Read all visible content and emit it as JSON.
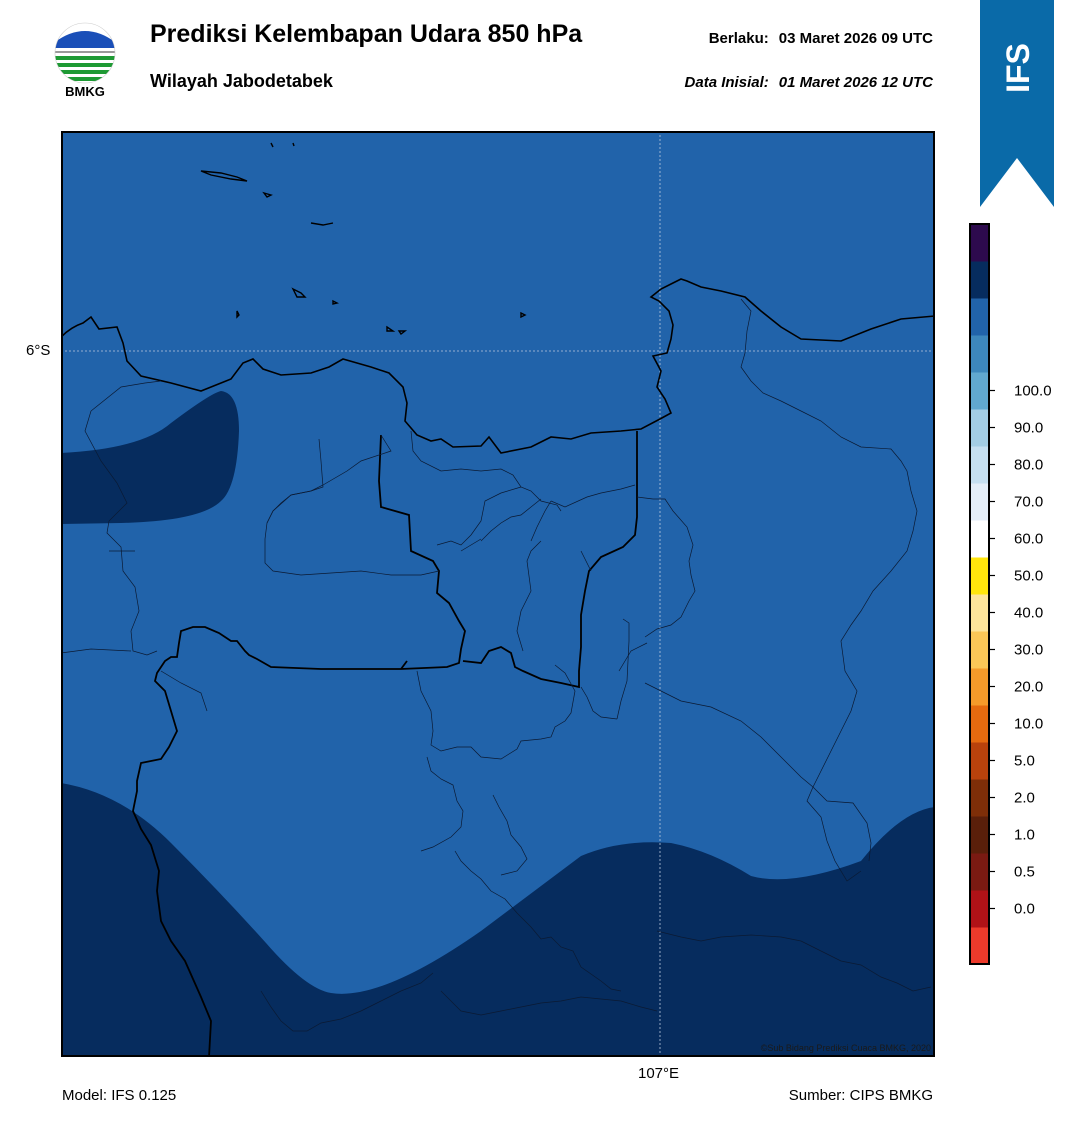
{
  "header": {
    "title": "Prediksi Kelembapan Udara 850 hPa",
    "subtitle": "Wilayah Jabodetabek",
    "valid_label": "Berlaku:",
    "valid_value": "03 Maret 2026 09 UTC",
    "init_label": "Data Inisial:",
    "init_value": "01 Maret 2026 12 UTC"
  },
  "logo": {
    "text": "BMKG",
    "icon": "bmkg-logo-icon"
  },
  "ribbon": {
    "text": "IFS",
    "color": "#0a6aa8"
  },
  "map": {
    "lat_label": "6°S",
    "lon_label": "107°E",
    "credit": "©Sub Bidang Prediksi Cuaca BMKG, 2020",
    "base_fill_color": "#2163aa",
    "high_fill_color": "#062c5e"
  },
  "colorbar": {
    "colors": [
      "#ec3a2b",
      "#b01217",
      "#7a1a12",
      "#5a1f0a",
      "#7e2e08",
      "#b9420c",
      "#e56a0f",
      "#f59a2a",
      "#fbc757",
      "#fde49a",
      "#ffe50c",
      "#ffffff",
      "#e4eef8",
      "#c5dff0",
      "#a3cde4",
      "#61a8cf",
      "#3d87bc",
      "#2163aa",
      "#062c5e",
      "#2d0a4d"
    ],
    "labels": [
      "0.0",
      "0.5",
      "1.0",
      "2.0",
      "5.0",
      "10.0",
      "20.0",
      "30.0",
      "40.0",
      "50.0",
      "60.0",
      "70.0",
      "80.0",
      "90.0",
      "100.0"
    ]
  },
  "footer": {
    "model": "Model: IFS 0.125",
    "source": "Sumber: CIPS BMKG"
  }
}
